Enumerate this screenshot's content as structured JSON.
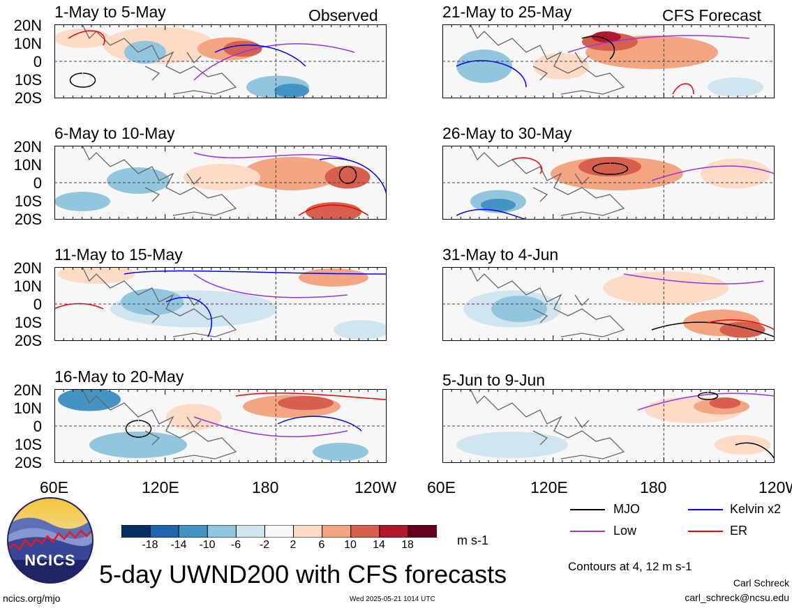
{
  "figure": {
    "main_title": "5-day UWND200 with CFS forecasts",
    "units": "m s-1",
    "contour_note": "Contours at 4, 12 m s-1",
    "author": "Carl Schreck",
    "email": "carl_schreck@ncsu.edu",
    "site": "ncics.org/mjo",
    "timestamp": "Wed 2025-05-21 1014 UTC",
    "logo_text": "NCICS",
    "observed_label": "Observed",
    "forecast_label": "CFS Forecast"
  },
  "chart_data": {
    "type": "heatmap",
    "variable": "UWND200",
    "x_ticks": [
      "60E",
      "120E",
      "180",
      "120W"
    ],
    "y_ticks": [
      "20N",
      "10N",
      "0",
      "10S",
      "20S"
    ],
    "x_range": [
      60,
      240
    ],
    "y_range": [
      -20,
      20
    ],
    "colorbar": {
      "levels": [
        "-18",
        "-14",
        "-10",
        "-6",
        "-2",
        "2",
        "6",
        "10",
        "14",
        "18"
      ],
      "colors": [
        "#053061",
        "#2166ac",
        "#4393c3",
        "#92c5de",
        "#d1e5f0",
        "#f7f7f7",
        "#fddbc7",
        "#f4a582",
        "#d6604d",
        "#b2182b",
        "#67001f"
      ]
    },
    "legend": [
      {
        "label": "MJO",
        "color": "#000000"
      },
      {
        "label": "Kelvin x2",
        "color": "#0000ee"
      },
      {
        "label": "Low",
        "color": "#9a32e8"
      },
      {
        "label": "ER",
        "color": "#ee0000"
      }
    ],
    "panels": [
      {
        "title": "1-May to 5-May",
        "column": "observed"
      },
      {
        "title": "6-May to 10-May",
        "column": "observed"
      },
      {
        "title": "11-May to 15-May",
        "column": "observed"
      },
      {
        "title": "16-May to 20-May",
        "column": "observed"
      },
      {
        "title": "21-May to 25-May",
        "column": "forecast"
      },
      {
        "title": "26-May to 30-May",
        "column": "forecast"
      },
      {
        "title": "31-May to 4-Jun",
        "column": "forecast"
      },
      {
        "title": "5-Jun to 9-Jun",
        "column": "forecast"
      }
    ]
  }
}
